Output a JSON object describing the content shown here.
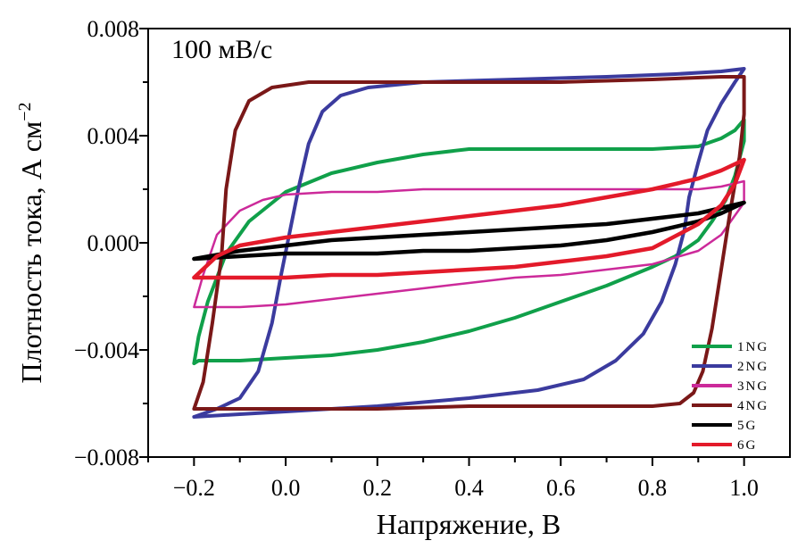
{
  "chart_data": {
    "type": "line",
    "title": "",
    "annotation": "100 мВ/с",
    "xlabel": "Напряжение, В",
    "ylabel": "Плотность тока, А см",
    "ylabel_sup": "−2",
    "xlim": [
      -0.3,
      1.1
    ],
    "ylim": [
      -0.008,
      0.008
    ],
    "x_ticks": [
      -0.2,
      0.0,
      0.2,
      0.4,
      0.6,
      0.8,
      1.0
    ],
    "x_tick_labels": [
      "−0.2",
      "0.0",
      "0.2",
      "0.4",
      "0.6",
      "0.8",
      "1.0"
    ],
    "y_ticks": [
      0.008,
      0.004,
      0.0,
      -0.004,
      -0.008
    ],
    "y_tick_labels": [
      "0.008",
      "0.004",
      "0.000",
      "−0.004",
      "−0.008"
    ],
    "grid": false,
    "legend_position": "bottom-right",
    "series": [
      {
        "name": "1NG",
        "color": "#10a04a",
        "stroke": 4,
        "x": [
          -0.2,
          -0.19,
          -0.17,
          -0.13,
          -0.08,
          0.0,
          0.1,
          0.2,
          0.3,
          0.4,
          0.5,
          0.6,
          0.7,
          0.8,
          0.9,
          0.95,
          0.98,
          1.0,
          1.0,
          0.98,
          0.96,
          0.93,
          0.9,
          0.85,
          0.8,
          0.7,
          0.6,
          0.5,
          0.4,
          0.3,
          0.2,
          0.1,
          0.0,
          -0.1,
          -0.15,
          -0.19,
          -0.2,
          -0.2
        ],
        "y": [
          -0.0045,
          -0.0035,
          -0.0022,
          -0.0004,
          0.0008,
          0.0019,
          0.0026,
          0.003,
          0.0033,
          0.0035,
          0.0035,
          0.0035,
          0.0035,
          0.0035,
          0.0036,
          0.0039,
          0.0042,
          0.0046,
          0.0038,
          0.0025,
          0.0016,
          0.0008,
          0.0001,
          -0.0005,
          -0.0009,
          -0.0016,
          -0.0022,
          -0.0028,
          -0.0033,
          -0.0037,
          -0.004,
          -0.0042,
          -0.0043,
          -0.0044,
          -0.0044,
          -0.0044,
          -0.0045,
          -0.0045
        ]
      },
      {
        "name": "2NG",
        "color": "#3b3b9e",
        "stroke": 4,
        "x": [
          -0.2,
          -0.15,
          -0.1,
          -0.06,
          -0.03,
          -0.01,
          0.01,
          0.03,
          0.05,
          0.08,
          0.12,
          0.18,
          0.3,
          0.5,
          0.7,
          0.85,
          0.95,
          1.0,
          0.98,
          0.95,
          0.92,
          0.9,
          0.88,
          0.87,
          0.85,
          0.82,
          0.78,
          0.72,
          0.65,
          0.55,
          0.4,
          0.2,
          0.0,
          -0.1,
          -0.2
        ],
        "y": [
          -0.0065,
          -0.0062,
          -0.0058,
          -0.0048,
          -0.003,
          -0.0012,
          0.0005,
          0.0022,
          0.0037,
          0.0049,
          0.0055,
          0.0058,
          0.006,
          0.0061,
          0.0062,
          0.0063,
          0.0064,
          0.0065,
          0.006,
          0.0052,
          0.0042,
          0.003,
          0.0017,
          0.0005,
          -0.0008,
          -0.0022,
          -0.0034,
          -0.0044,
          -0.0051,
          -0.0055,
          -0.0058,
          -0.0061,
          -0.0063,
          -0.0064,
          -0.0065
        ]
      },
      {
        "name": "3NG",
        "color": "#cc2a9a",
        "stroke": 2.5,
        "x": [
          -0.2,
          -0.18,
          -0.15,
          -0.1,
          -0.05,
          0.0,
          0.1,
          0.2,
          0.3,
          0.4,
          0.5,
          0.6,
          0.7,
          0.8,
          0.9,
          0.95,
          1.0,
          1.0,
          0.95,
          0.9,
          0.8,
          0.7,
          0.6,
          0.5,
          0.4,
          0.3,
          0.2,
          0.1,
          0.0,
          -0.1,
          -0.15,
          -0.2,
          -0.2
        ],
        "y": [
          -0.0024,
          -0.0012,
          0.0003,
          0.0012,
          0.0016,
          0.0018,
          0.0019,
          0.0019,
          0.002,
          0.002,
          0.002,
          0.002,
          0.002,
          0.002,
          0.002,
          0.0021,
          0.0023,
          0.0015,
          0.0003,
          -0.0003,
          -0.0008,
          -0.001,
          -0.0012,
          -0.0013,
          -0.0015,
          -0.0017,
          -0.0019,
          -0.0021,
          -0.0023,
          -0.0024,
          -0.0024,
          -0.0024,
          -0.0024
        ]
      },
      {
        "name": "4NG",
        "color": "#7a1818",
        "stroke": 4,
        "x": [
          -0.2,
          -0.18,
          -0.16,
          -0.14,
          -0.13,
          -0.11,
          -0.08,
          -0.03,
          0.05,
          0.2,
          0.4,
          0.6,
          0.8,
          0.95,
          1.0,
          1.0,
          0.99,
          0.97,
          0.95,
          0.93,
          0.91,
          0.89,
          0.86,
          0.8,
          0.6,
          0.4,
          0.2,
          0.0,
          -0.2
        ],
        "y": [
          -0.0062,
          -0.0052,
          -0.003,
          -0.0005,
          0.002,
          0.0042,
          0.0053,
          0.0058,
          0.006,
          0.006,
          0.006,
          0.006,
          0.0061,
          0.0062,
          0.0062,
          0.0048,
          0.0032,
          0.0012,
          -0.001,
          -0.0032,
          -0.0048,
          -0.0056,
          -0.006,
          -0.0061,
          -0.0061,
          -0.0061,
          -0.0062,
          -0.0062,
          -0.0062
        ]
      },
      {
        "name": "5G",
        "color": "#000000",
        "stroke": 4.5,
        "x": [
          -0.2,
          -0.1,
          0.0,
          0.1,
          0.2,
          0.3,
          0.4,
          0.5,
          0.6,
          0.7,
          0.8,
          0.9,
          0.95,
          1.0,
          0.95,
          0.9,
          0.8,
          0.7,
          0.6,
          0.5,
          0.4,
          0.3,
          0.2,
          0.1,
          0.0,
          -0.1,
          -0.2
        ],
        "y": [
          -0.0006,
          -0.0003,
          -0.0001,
          0.0001,
          0.0002,
          0.0003,
          0.0004,
          0.0005,
          0.0006,
          0.0007,
          0.0009,
          0.0011,
          0.0013,
          0.0015,
          0.0011,
          0.0008,
          0.0004,
          0.0001,
          -0.0001,
          -0.0002,
          -0.0003,
          -0.0003,
          -0.0004,
          -0.0004,
          -0.0004,
          -0.0005,
          -0.0006
        ]
      },
      {
        "name": "6G",
        "color": "#e31a2a",
        "stroke": 4.5,
        "x": [
          -0.2,
          -0.15,
          -0.1,
          0.0,
          0.1,
          0.2,
          0.3,
          0.4,
          0.5,
          0.6,
          0.7,
          0.8,
          0.9,
          0.95,
          1.0,
          0.98,
          0.95,
          0.9,
          0.8,
          0.7,
          0.6,
          0.5,
          0.4,
          0.3,
          0.2,
          0.1,
          0.0,
          -0.1,
          -0.2
        ],
        "y": [
          -0.0013,
          -0.0005,
          -0.0001,
          0.0002,
          0.0004,
          0.0006,
          0.0008,
          0.001,
          0.0012,
          0.0014,
          0.0017,
          0.002,
          0.0024,
          0.0027,
          0.0031,
          0.0022,
          0.0014,
          0.0007,
          -0.0002,
          -0.0005,
          -0.0007,
          -0.0009,
          -0.001,
          -0.0011,
          -0.0012,
          -0.0012,
          -0.0013,
          -0.0013,
          -0.0013
        ]
      }
    ]
  }
}
